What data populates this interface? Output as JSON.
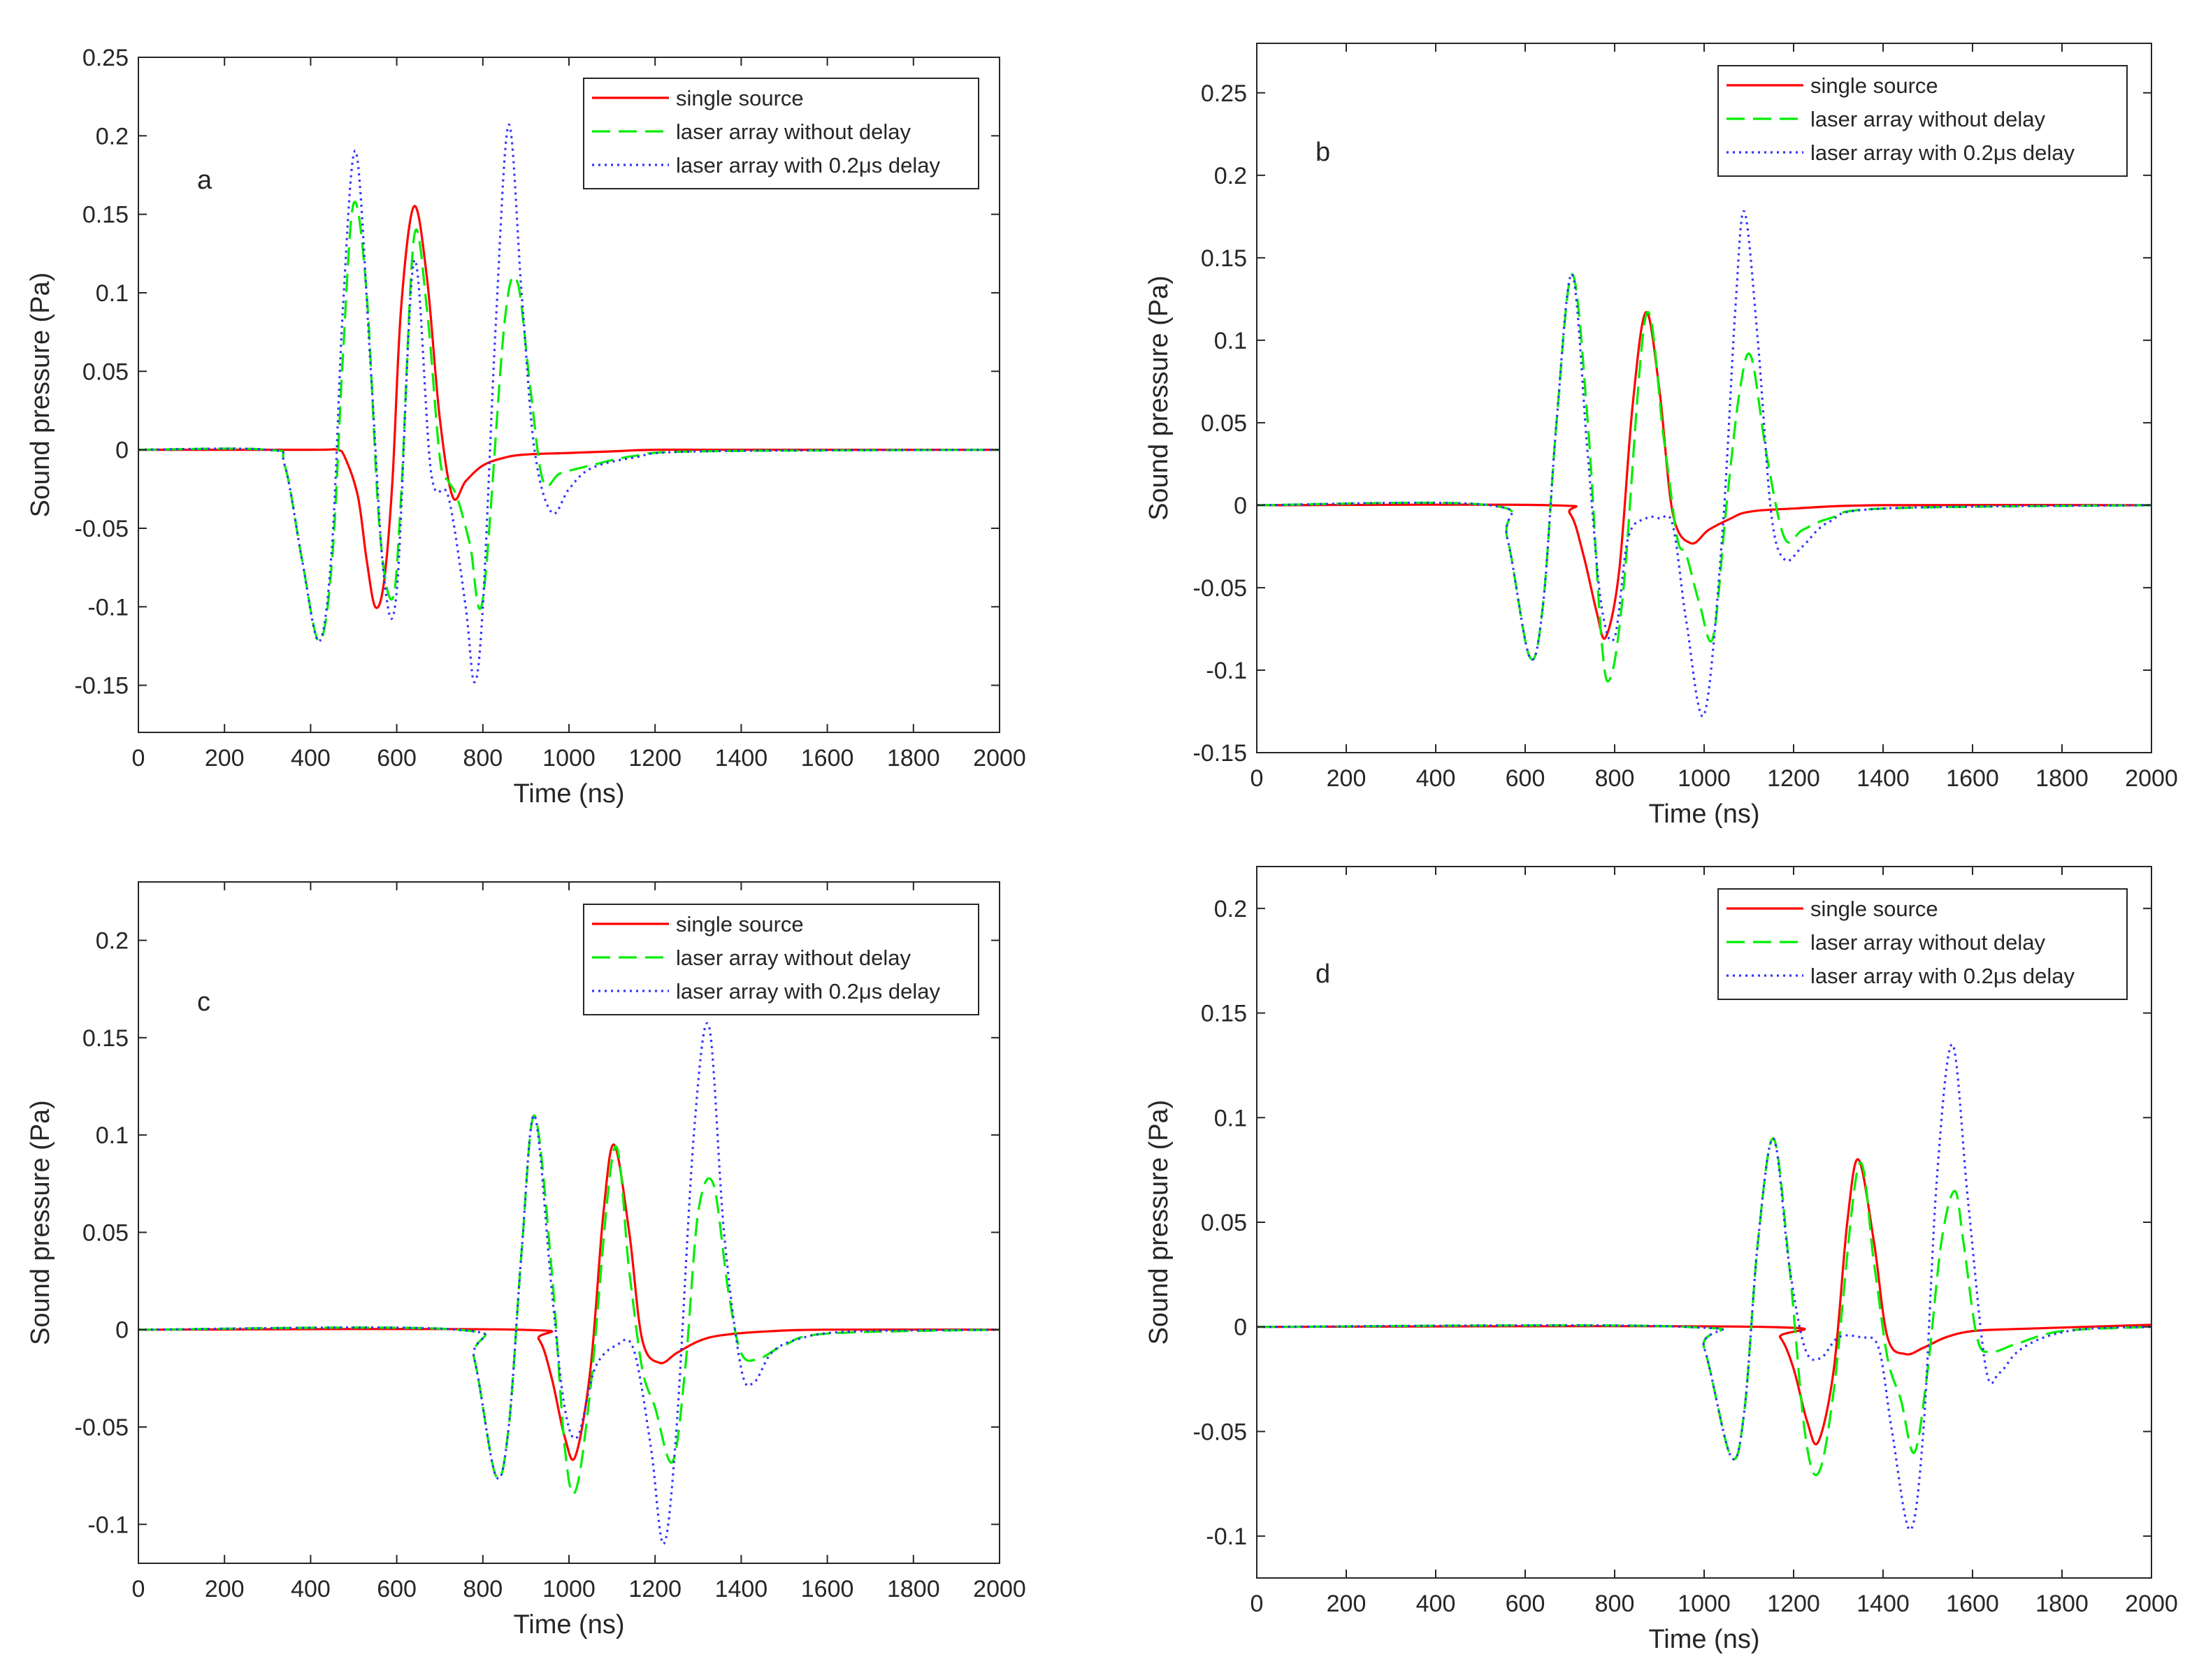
{
  "chart_data": [
    {
      "type": "line",
      "panel_label": "a",
      "xlabel": "Time (ns)",
      "ylabel": "Sound pressure (Pa)",
      "xlim": [
        0,
        2000
      ],
      "ylim": [
        -0.18,
        0.25
      ],
      "xticks": [
        0,
        200,
        400,
        600,
        800,
        1000,
        1200,
        1400,
        1600,
        1800,
        2000
      ],
      "yticks": [
        -0.15,
        -0.1,
        -0.05,
        0,
        0.05,
        0.1,
        0.15,
        0.2,
        0.25
      ],
      "ytick_labels": [
        "-0.15",
        "-0.1",
        "-0.05",
        "0",
        "0.05",
        "0.1",
        "0.15",
        "0.2",
        "0.25"
      ],
      "legend_position": "top-right",
      "series": [
        {
          "name": "single source",
          "color": "#ff0000",
          "style": "solid",
          "x": [
            0,
            400,
            460,
            480,
            510,
            530,
            550,
            570,
            590,
            610,
            640,
            670,
            700,
            730,
            760,
            800,
            850,
            900,
            1000,
            1100,
            1200,
            1400,
            2000
          ],
          "y": [
            0,
            0,
            0,
            -0.005,
            -0.03,
            -0.07,
            -0.1,
            -0.085,
            -0.02,
            0.09,
            0.155,
            0.11,
            0.02,
            -0.03,
            -0.02,
            -0.01,
            -0.005,
            -0.003,
            -0.002,
            -0.001,
            0,
            0,
            0
          ]
        },
        {
          "name": "laser array without delay",
          "color": "#00ee00",
          "style": "dashed",
          "x": [
            0,
            300,
            340,
            380,
            420,
            450,
            475,
            500,
            530,
            560,
            590,
            610,
            640,
            670,
            700,
            720,
            740,
            770,
            800,
            850,
            880,
            910,
            940,
            980,
            1050,
            1150,
            1300,
            2000
          ],
          "y": [
            0,
            0,
            -0.01,
            -0.07,
            -0.122,
            -0.07,
            0.06,
            0.157,
            0.1,
            -0.05,
            -0.095,
            -0.03,
            0.135,
            0.09,
            -0.005,
            -0.02,
            -0.03,
            -0.06,
            -0.095,
            0.08,
            0.107,
            0.04,
            -0.02,
            -0.015,
            -0.01,
            -0.004,
            -0.001,
            0
          ]
        },
        {
          "name": "laser array with 0.2μs delay",
          "color": "#3333ff",
          "style": "dotted",
          "x": [
            0,
            300,
            340,
            380,
            420,
            450,
            475,
            505,
            540,
            570,
            600,
            640,
            680,
            720,
            760,
            780,
            800,
            830,
            860,
            890,
            920,
            960,
            1000,
            1050,
            1150,
            1300,
            2000
          ],
          "y": [
            0,
            0,
            -0.01,
            -0.07,
            -0.122,
            -0.06,
            0.09,
            0.19,
            0.05,
            -0.08,
            -0.09,
            0.12,
            -0.015,
            -0.03,
            -0.1,
            -0.148,
            -0.1,
            0.08,
            0.207,
            0.1,
            0.0,
            -0.04,
            -0.025,
            -0.012,
            -0.005,
            -0.001,
            0
          ]
        }
      ]
    },
    {
      "type": "line",
      "panel_label": "b",
      "xlabel": "Time (ns)",
      "ylabel": "Sound pressure (Pa)",
      "xlim": [
        0,
        2000
      ],
      "ylim": [
        -0.15,
        0.28
      ],
      "xticks": [
        0,
        200,
        400,
        600,
        800,
        1000,
        1200,
        1400,
        1600,
        1800,
        2000
      ],
      "yticks": [
        -0.15,
        -0.1,
        -0.05,
        0,
        0.05,
        0.1,
        0.15,
        0.2,
        0.25
      ],
      "ytick_labels": [
        "-0.15",
        "-0.1",
        "-0.05",
        "0",
        "0.05",
        "0.1",
        "0.15",
        "0.2",
        "0.25"
      ],
      "legend_position": "top-right",
      "series": [
        {
          "name": "single source",
          "color": "#ff0000",
          "style": "solid",
          "x": [
            0,
            650,
            700,
            730,
            760,
            780,
            810,
            840,
            870,
            900,
            930,
            970,
            1010,
            1060,
            1100,
            1200,
            1400,
            2000
          ],
          "y": [
            0,
            0,
            -0.005,
            -0.03,
            -0.065,
            -0.08,
            -0.04,
            0.06,
            0.117,
            0.07,
            -0.005,
            -0.023,
            -0.015,
            -0.008,
            -0.004,
            -0.002,
            0,
            0
          ]
        },
        {
          "name": "laser array without delay",
          "color": "#00ee00",
          "style": "dashed",
          "x": [
            0,
            520,
            560,
            610,
            640,
            670,
            705,
            740,
            770,
            790,
            820,
            870,
            910,
            940,
            960,
            990,
            1020,
            1050,
            1080,
            1105,
            1140,
            1180,
            1220,
            1280,
            1400,
            2000
          ],
          "y": [
            0,
            0,
            -0.02,
            -0.092,
            -0.06,
            0.05,
            0.14,
            0.05,
            -0.08,
            -0.105,
            -0.05,
            0.115,
            0.04,
            -0.02,
            -0.03,
            -0.06,
            -0.08,
            0.0,
            0.07,
            0.09,
            0.03,
            -0.02,
            -0.015,
            -0.008,
            -0.002,
            0
          ]
        },
        {
          "name": "laser array with 0.2μs delay",
          "color": "#3333ff",
          "style": "dotted",
          "x": [
            0,
            520,
            560,
            610,
            640,
            670,
            705,
            740,
            770,
            800,
            830,
            870,
            900,
            930,
            960,
            1000,
            1040,
            1070,
            1090,
            1120,
            1150,
            1180,
            1220,
            1280,
            1400,
            2000
          ],
          "y": [
            0,
            0,
            -0.02,
            -0.092,
            -0.06,
            0.05,
            0.14,
            0.03,
            -0.06,
            -0.08,
            -0.02,
            -0.008,
            -0.008,
            -0.012,
            -0.07,
            -0.127,
            -0.02,
            0.12,
            0.178,
            0.1,
            -0.005,
            -0.033,
            -0.025,
            -0.01,
            -0.002,
            0
          ]
        }
      ]
    },
    {
      "type": "line",
      "panel_label": "c",
      "xlabel": "Time (ns)",
      "ylabel": "Sound pressure (Pa)",
      "xlim": [
        0,
        2000
      ],
      "ylim": [
        -0.12,
        0.23
      ],
      "xticks": [
        0,
        200,
        400,
        600,
        800,
        1000,
        1200,
        1400,
        1600,
        1800,
        2000
      ],
      "yticks": [
        -0.1,
        -0.05,
        0,
        0.05,
        0.1,
        0.15,
        0.2
      ],
      "ytick_labels": [
        "-0.1",
        "-0.05",
        "0",
        "0.05",
        "0.1",
        "0.15",
        "0.2"
      ],
      "legend_position": "top-right",
      "series": [
        {
          "name": "single source",
          "color": "#ff0000",
          "style": "solid",
          "x": [
            0,
            880,
            930,
            960,
            990,
            1015,
            1050,
            1080,
            1105,
            1140,
            1170,
            1210,
            1250,
            1300,
            1350,
            1450,
            1600,
            2000
          ],
          "y": [
            0,
            0,
            -0.005,
            -0.025,
            -0.055,
            -0.065,
            -0.02,
            0.06,
            0.095,
            0.05,
            -0.005,
            -0.017,
            -0.012,
            -0.006,
            -0.003,
            -0.001,
            0,
            0
          ]
        },
        {
          "name": "laser array without delay",
          "color": "#00ee00",
          "style": "dashed",
          "x": [
            0,
            740,
            780,
            830,
            860,
            890,
            920,
            960,
            990,
            1015,
            1050,
            1105,
            1140,
            1170,
            1200,
            1240,
            1270,
            1300,
            1335,
            1370,
            1400,
            1440,
            1500,
            1600,
            2000
          ],
          "y": [
            0,
            0,
            -0.015,
            -0.075,
            -0.05,
            0.04,
            0.11,
            0.03,
            -0.06,
            -0.083,
            -0.03,
            0.093,
            0.03,
            -0.02,
            -0.04,
            -0.068,
            -0.02,
            0.06,
            0.075,
            0.02,
            -0.012,
            -0.015,
            -0.008,
            -0.002,
            0
          ]
        },
        {
          "name": "laser array with 0.2μs delay",
          "color": "#3333ff",
          "style": "dotted",
          "x": [
            0,
            740,
            780,
            830,
            860,
            890,
            920,
            960,
            990,
            1020,
            1060,
            1110,
            1150,
            1190,
            1220,
            1250,
            1290,
            1325,
            1360,
            1400,
            1430,
            1470,
            1530,
            1650,
            2000
          ],
          "y": [
            0,
            0,
            -0.015,
            -0.075,
            -0.05,
            0.04,
            0.11,
            0.02,
            -0.04,
            -0.055,
            -0.02,
            -0.008,
            -0.01,
            -0.06,
            -0.11,
            -0.05,
            0.1,
            0.156,
            0.05,
            -0.02,
            -0.027,
            -0.012,
            -0.005,
            -0.001,
            0
          ]
        }
      ]
    },
    {
      "type": "line",
      "panel_label": "d",
      "xlabel": "Time (ns)",
      "ylabel": "Sound pressure (Pa)",
      "xlim": [
        0,
        2000
      ],
      "ylim": [
        -0.12,
        0.22
      ],
      "xticks": [
        0,
        200,
        400,
        600,
        800,
        1000,
        1200,
        1400,
        1600,
        1800,
        2000
      ],
      "yticks": [
        -0.1,
        -0.05,
        0,
        0.05,
        0.1,
        0.15,
        0.2
      ],
      "ytick_labels": [
        "-0.1",
        "-0.05",
        "0",
        "0.05",
        "0.1",
        "0.15",
        "0.2"
      ],
      "legend_position": "top-right",
      "series": [
        {
          "name": "single source",
          "color": "#ff0000",
          "style": "solid",
          "x": [
            0,
            1130,
            1170,
            1200,
            1230,
            1255,
            1290,
            1320,
            1345,
            1380,
            1410,
            1450,
            1490,
            1540,
            1600,
            1700,
            1850,
            2000
          ],
          "y": [
            0,
            0,
            -0.005,
            -0.02,
            -0.045,
            -0.055,
            -0.02,
            0.05,
            0.08,
            0.04,
            -0.005,
            -0.013,
            -0.01,
            -0.005,
            -0.002,
            -0.001,
            0,
            0.001
          ]
        },
        {
          "name": "laser array without delay",
          "color": "#00ee00",
          "style": "dashed",
          "x": [
            0,
            960,
            1000,
            1060,
            1090,
            1120,
            1155,
            1190,
            1225,
            1255,
            1290,
            1345,
            1380,
            1410,
            1440,
            1470,
            1500,
            1530,
            1560,
            1580,
            1610,
            1640,
            1700,
            1800,
            2000
          ],
          "y": [
            0,
            0,
            -0.01,
            -0.062,
            -0.04,
            0.04,
            0.09,
            0.03,
            -0.05,
            -0.07,
            -0.03,
            0.077,
            0.03,
            -0.015,
            -0.035,
            -0.06,
            -0.02,
            0.04,
            0.065,
            0.04,
            -0.005,
            -0.012,
            -0.008,
            -0.002,
            0
          ]
        },
        {
          "name": "laser array with 0.2μs delay",
          "color": "#3333ff",
          "style": "dotted",
          "x": [
            0,
            960,
            1000,
            1060,
            1090,
            1120,
            1155,
            1190,
            1225,
            1260,
            1300,
            1350,
            1390,
            1420,
            1460,
            1490,
            1520,
            1555,
            1590,
            1630,
            1660,
            1700,
            1760,
            1850,
            2000
          ],
          "y": [
            0,
            0,
            -0.01,
            -0.062,
            -0.04,
            0.04,
            0.09,
            0.03,
            -0.01,
            -0.015,
            -0.005,
            -0.005,
            -0.01,
            -0.05,
            -0.097,
            -0.05,
            0.07,
            0.135,
            0.06,
            -0.02,
            -0.022,
            -0.012,
            -0.005,
            -0.001,
            0
          ]
        }
      ]
    }
  ]
}
